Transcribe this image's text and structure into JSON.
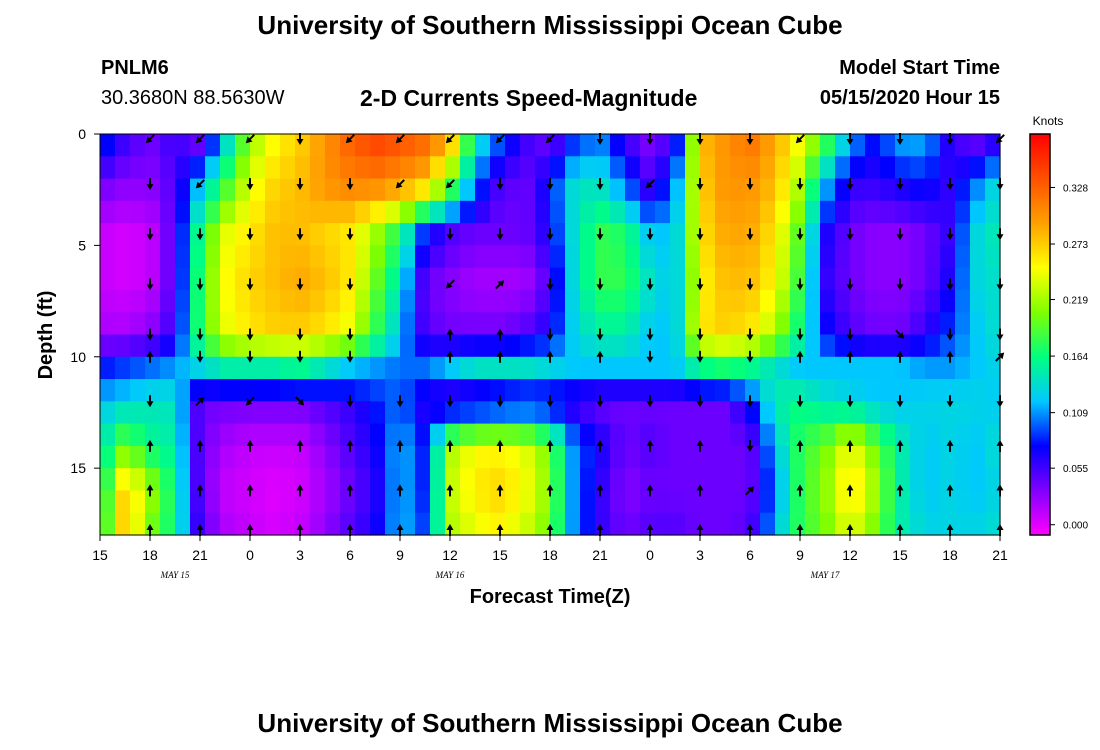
{
  "header": {
    "title": "University of Southern Mississippi Ocean Cube",
    "station_id": "PNLM6",
    "station_coords": "30.3680N 88.5630W",
    "plot_title": "2-D Currents Speed-Magnitude",
    "model_label": "Model Start Time",
    "model_time": "05/15/2020 Hour 15"
  },
  "footer": {
    "title": "University of Southern Mississippi Ocean Cube"
  },
  "chart_data": {
    "type": "heatmap",
    "title": "2-D Currents Speed-Magnitude",
    "xlabel": "Forecast Time(Z)",
    "ylabel": "Depth (ft)",
    "x_tick_labels": [
      "15",
      "18",
      "21",
      "0",
      "3",
      "6",
      "9",
      "12",
      "15",
      "18",
      "21",
      "0",
      "3",
      "6",
      "9",
      "12",
      "15",
      "18",
      "21"
    ],
    "x_hours": [
      0,
      3,
      6,
      9,
      12,
      15,
      18,
      21,
      24,
      27,
      30,
      33,
      36,
      39,
      42,
      45,
      48,
      51,
      54
    ],
    "xlim": [
      0,
      54
    ],
    "day_labels": [
      {
        "text": "MAY 15",
        "hour": 4.5
      },
      {
        "text": "MAY 16",
        "hour": 21
      },
      {
        "text": "MAY 17",
        "hour": 43.5
      }
    ],
    "y_ticks": [
      0,
      5,
      10,
      15
    ],
    "ylim": [
      0,
      18
    ],
    "y_inverted": true,
    "colorbar": {
      "units": "Knots",
      "ticks": [
        "0.000",
        "0.055",
        "0.109",
        "0.164",
        "0.219",
        "0.273",
        "0.328"
      ],
      "tick_values": [
        0.0,
        0.055,
        0.109,
        0.164,
        0.219,
        0.273,
        0.328
      ],
      "range": [
        -0.01,
        0.38
      ],
      "colors": [
        "#ff00ff",
        "#8000ff",
        "#0000ff",
        "#00c8ff",
        "#00ff80",
        "#80ff00",
        "#ffff00",
        "#ffa000",
        "#ff5000",
        "#ff0000"
      ]
    },
    "depths": [
      0,
      2.25,
      4.5,
      6.75,
      9,
      10.5,
      12,
      14,
      16,
      18
    ],
    "speed_hours": [
      0,
      1.5,
      3,
      4.5,
      6,
      7.5,
      9,
      10.5,
      12,
      13.5,
      15,
      16.5,
      18,
      19.5,
      21,
      22.5,
      24,
      25.5,
      27,
      28.5,
      30,
      31.5,
      33,
      34.5,
      36,
      37.5,
      39,
      40.5,
      42,
      43.5,
      45,
      46.5,
      48,
      49.5,
      51,
      52.5,
      54
    ],
    "speed": [
      [
        0.1,
        0.06,
        0.04,
        0.06,
        0.02,
        0.12,
        0.21,
        0.25,
        0.27,
        0.3,
        0.33,
        0.35,
        0.34,
        0.33,
        0.3,
        0.15,
        0.1,
        0.06,
        0.03,
        0.08,
        0.1,
        0.05,
        0.03,
        0.05,
        0.28,
        0.3,
        0.32,
        0.29,
        0.25,
        0.2,
        0.12,
        0.08,
        0.12,
        0.12,
        0.06,
        0.03,
        0.05
      ],
      [
        0.04,
        0.03,
        0.03,
        0.05,
        0.12,
        0.18,
        0.24,
        0.27,
        0.28,
        0.3,
        0.31,
        0.31,
        0.3,
        0.28,
        0.2,
        0.1,
        0.05,
        0.04,
        0.08,
        0.14,
        0.14,
        0.1,
        0.05,
        0.1,
        0.27,
        0.3,
        0.3,
        0.28,
        0.22,
        0.12,
        0.06,
        0.06,
        0.07,
        0.08,
        0.06,
        0.1,
        0.14
      ],
      [
        0.01,
        0.005,
        0.01,
        0.05,
        0.17,
        0.24,
        0.26,
        0.28,
        0.28,
        0.27,
        0.26,
        0.22,
        0.17,
        0.08,
        0.05,
        0.04,
        0.04,
        0.04,
        0.07,
        0.14,
        0.18,
        0.17,
        0.12,
        0.12,
        0.26,
        0.29,
        0.29,
        0.26,
        0.19,
        0.07,
        0.04,
        0.03,
        0.03,
        0.04,
        0.06,
        0.13,
        0.15
      ],
      [
        0.01,
        0.005,
        0.01,
        0.05,
        0.18,
        0.25,
        0.27,
        0.28,
        0.29,
        0.28,
        0.26,
        0.2,
        0.14,
        0.04,
        0.03,
        0.02,
        0.02,
        0.02,
        0.05,
        0.14,
        0.18,
        0.18,
        0.14,
        0.12,
        0.25,
        0.28,
        0.28,
        0.25,
        0.18,
        0.06,
        0.04,
        0.03,
        0.03,
        0.04,
        0.07,
        0.13,
        0.14
      ],
      [
        0.02,
        0.02,
        0.03,
        0.06,
        0.18,
        0.24,
        0.26,
        0.27,
        0.27,
        0.26,
        0.24,
        0.18,
        0.12,
        0.05,
        0.04,
        0.04,
        0.04,
        0.05,
        0.07,
        0.13,
        0.15,
        0.15,
        0.12,
        0.12,
        0.26,
        0.27,
        0.26,
        0.22,
        0.16,
        0.08,
        0.05,
        0.04,
        0.04,
        0.06,
        0.09,
        0.12,
        0.14
      ],
      [
        0.08,
        0.09,
        0.1,
        0.11,
        0.13,
        0.15,
        0.15,
        0.15,
        0.16,
        0.14,
        0.12,
        0.11,
        0.1,
        0.1,
        0.12,
        0.14,
        0.14,
        0.14,
        0.13,
        0.12,
        0.12,
        0.12,
        0.12,
        0.12,
        0.16,
        0.17,
        0.16,
        0.14,
        0.12,
        0.12,
        0.12,
        0.12,
        0.12,
        0.11,
        0.11,
        0.12,
        0.13
      ],
      [
        0.12,
        0.13,
        0.14,
        0.14,
        0.04,
        0.04,
        0.04,
        0.04,
        0.04,
        0.05,
        0.06,
        0.08,
        0.1,
        0.06,
        0.04,
        0.04,
        0.05,
        0.06,
        0.06,
        0.05,
        0.04,
        0.04,
        0.04,
        0.04,
        0.04,
        0.04,
        0.08,
        0.15,
        0.16,
        0.14,
        0.13,
        0.12,
        0.12,
        0.13,
        0.13,
        0.13,
        0.12
      ],
      [
        0.14,
        0.2,
        0.16,
        0.15,
        0.04,
        0.02,
        0.01,
        0.01,
        0.01,
        0.03,
        0.05,
        0.07,
        0.12,
        0.08,
        0.22,
        0.25,
        0.25,
        0.24,
        0.2,
        0.1,
        0.07,
        0.04,
        0.05,
        0.04,
        0.04,
        0.04,
        0.04,
        0.12,
        0.18,
        0.2,
        0.25,
        0.2,
        0.15,
        0.12,
        0.13,
        0.12,
        0.14
      ],
      [
        0.15,
        0.28,
        0.22,
        0.16,
        0.04,
        0.01,
        0.005,
        0.0,
        0.005,
        0.02,
        0.04,
        0.06,
        0.12,
        0.08,
        0.23,
        0.26,
        0.27,
        0.25,
        0.21,
        0.1,
        0.06,
        0.03,
        0.04,
        0.04,
        0.04,
        0.04,
        0.04,
        0.1,
        0.18,
        0.21,
        0.27,
        0.22,
        0.15,
        0.12,
        0.13,
        0.12,
        0.13
      ],
      [
        0.16,
        0.28,
        0.2,
        0.16,
        0.05,
        0.02,
        0.01,
        0.005,
        0.01,
        0.03,
        0.05,
        0.07,
        0.12,
        0.09,
        0.22,
        0.24,
        0.25,
        0.23,
        0.2,
        0.1,
        0.06,
        0.04,
        0.05,
        0.05,
        0.04,
        0.04,
        0.05,
        0.12,
        0.18,
        0.2,
        0.24,
        0.2,
        0.15,
        0.13,
        0.13,
        0.13,
        0.14
      ]
    ],
    "arrow_hours": [
      0,
      3,
      6,
      9,
      12,
      15,
      18,
      21,
      24,
      27,
      30,
      33,
      36,
      39,
      42,
      45,
      48,
      51,
      54
    ],
    "arrow_depths": [
      0,
      2.25,
      4.5,
      6.75,
      9,
      10,
      12,
      14,
      16,
      18
    ],
    "arrow_rows": [
      [
        "",
        "SW",
        "SW",
        "SW",
        "S",
        "SW",
        "SW",
        "SW",
        "SW",
        "SW",
        "S",
        "S",
        "S",
        "S",
        "SW",
        "S",
        "S",
        "S",
        "SW"
      ],
      [
        "",
        "S",
        "SW",
        "S",
        "S",
        "S",
        "SW",
        "SW",
        "S",
        "S",
        "S",
        "SW",
        "S",
        "S",
        "S",
        "S",
        "S",
        "S",
        "S"
      ],
      [
        "",
        "S",
        "S",
        "S",
        "S",
        "S",
        "",
        "S",
        "S",
        "S",
        "S",
        "S",
        "S",
        "S",
        "S",
        "S",
        "S",
        "S",
        "S"
      ],
      [
        "",
        "S",
        "S",
        "S",
        "S",
        "S",
        "",
        "SW",
        "NE",
        "S",
        "S",
        "S",
        "S",
        "S",
        "S",
        "S",
        "S",
        "S",
        "S"
      ],
      [
        "",
        "S",
        "S",
        "S",
        "S",
        "S",
        "",
        "N",
        "N",
        "S",
        "S",
        "S",
        "S",
        "S",
        "S",
        "S",
        "SE",
        "S",
        "S"
      ],
      [
        "",
        "N",
        "S",
        "S",
        "S",
        "S",
        "",
        "N",
        "N",
        "N",
        "N",
        "S",
        "S",
        "S",
        "N",
        "N",
        "N",
        "N",
        "NE"
      ],
      [
        "",
        "S",
        "NE",
        "SW",
        "SE",
        "S",
        "S",
        "S",
        "S",
        "S",
        "S",
        "S",
        "S",
        "S",
        "S",
        "S",
        "S",
        "S",
        "S"
      ],
      [
        "",
        "N",
        "N",
        "N",
        "N",
        "N",
        "N",
        "N",
        "N",
        "N",
        "N",
        "N",
        "N",
        "S",
        "N",
        "N",
        "N",
        "N",
        "N"
      ],
      [
        "",
        "N",
        "N",
        "N",
        "N",
        "N",
        "N",
        "N",
        "N",
        "N",
        "N",
        "N",
        "N",
        "NE",
        "N",
        "N",
        "N",
        "N",
        "N"
      ],
      [
        "",
        "N",
        "N",
        "N",
        "N",
        "N",
        "N",
        "N",
        "N",
        "N",
        "N",
        "N",
        "N",
        "N",
        "N",
        "N",
        "N",
        "N",
        "N"
      ]
    ]
  }
}
